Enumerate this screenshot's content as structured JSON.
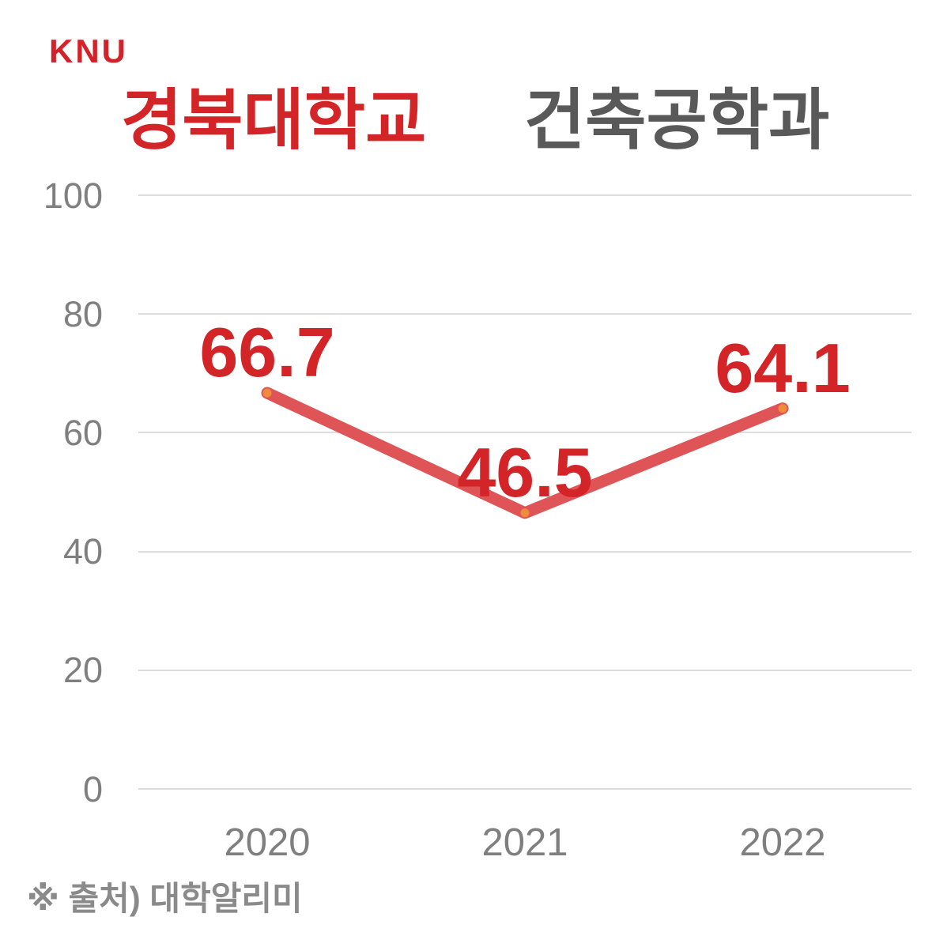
{
  "brand": {
    "logo_text": "KNU"
  },
  "header": {
    "university": "경북대학교",
    "department": "건축공학과"
  },
  "footer": {
    "source_note": "※ 출처) 대학알리미"
  },
  "colors": {
    "brand_red": "#d2232a",
    "title_red": "#d32427",
    "title_gray": "#595959",
    "axis_gray": "#7f7f7f",
    "gridline_gray": "#dcdcdc",
    "footer_gray": "#8a8a8a"
  },
  "chart_data": {
    "type": "line",
    "title": "경북대학교 건축공학과",
    "categories": [
      "2020",
      "2021",
      "2022"
    ],
    "values": [
      66.7,
      46.5,
      64.1
    ],
    "y_ticks": [
      100,
      80,
      60,
      40,
      20,
      0
    ],
    "ylim": [
      0,
      100
    ],
    "grid": true,
    "legend": "none",
    "line_color": "#df5456",
    "marker_color": "#ee8c3c",
    "data_label_color": "#d32427"
  }
}
